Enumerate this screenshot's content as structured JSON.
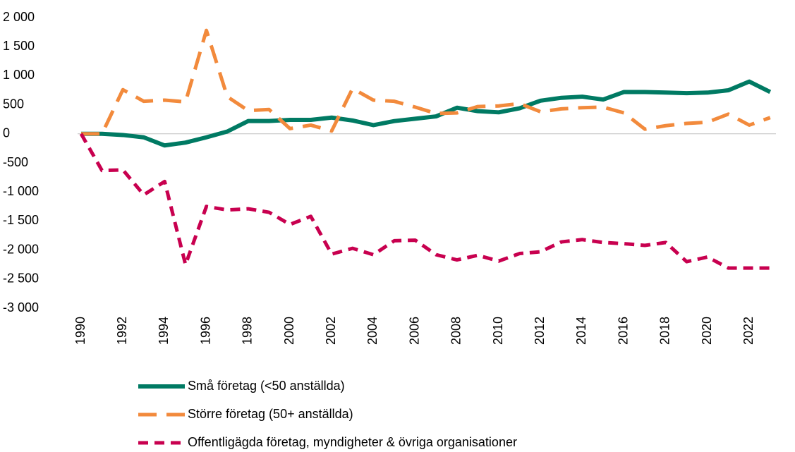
{
  "chart_data": {
    "type": "line",
    "categories": [
      "1990",
      null,
      "1992",
      null,
      "1994",
      null,
      "1996",
      null,
      "1998",
      null,
      "2000",
      null,
      "2002",
      null,
      "2004",
      null,
      "2006",
      null,
      "2008",
      null,
      "2010",
      null,
      "2012",
      null,
      "2014",
      null,
      "2016",
      null,
      "2018",
      null,
      "2020",
      null,
      "2022",
      null
    ],
    "series": [
      {
        "name": "Små företag (<50 anställda)",
        "color": "#007a63",
        "dash": "solid",
        "values": [
          0,
          0,
          -20,
          -60,
          -200,
          -150,
          -60,
          40,
          220,
          220,
          240,
          240,
          280,
          230,
          150,
          220,
          260,
          300,
          450,
          390,
          370,
          440,
          570,
          620,
          640,
          590,
          720,
          720,
          710,
          700,
          710,
          750,
          900,
          720
        ]
      },
      {
        "name": "Större företag (50+ anställda)",
        "color": "#f28a3c",
        "dash": "long",
        "values": [
          0,
          0,
          760,
          560,
          580,
          550,
          1780,
          640,
          400,
          420,
          90,
          150,
          50,
          780,
          580,
          560,
          460,
          350,
          360,
          470,
          480,
          520,
          380,
          430,
          450,
          460,
          360,
          80,
          140,
          180,
          200,
          340,
          150,
          280
        ]
      },
      {
        "name": "Offentligägda företag, myndigheter & övriga organisationer",
        "color": "#c8004f",
        "dash": "short",
        "values": [
          0,
          -630,
          -620,
          -1050,
          -820,
          -2250,
          -1250,
          -1310,
          -1290,
          -1350,
          -1560,
          -1420,
          -2070,
          -1970,
          -2080,
          -1840,
          -1830,
          -2080,
          -2170,
          -2090,
          -2190,
          -2060,
          -2030,
          -1860,
          -1820,
          -1870,
          -1890,
          -1920,
          -1870,
          -2200,
          -2120,
          -2310,
          -2310,
          -2310
        ]
      }
    ],
    "ylim": [
      -3000,
      2000
    ],
    "yticks": [
      {
        "value": -3000,
        "label": "-3 000"
      },
      {
        "value": -2500,
        "label": "-2 500"
      },
      {
        "value": -2000,
        "label": "-2 000"
      },
      {
        "value": -1500,
        "label": "-1 500"
      },
      {
        "value": -1000,
        "label": "-1 000"
      },
      -500,
      0,
      500,
      {
        "value": 1000,
        "label": "1 000"
      },
      {
        "value": 1500,
        "label": "1 500"
      },
      {
        "value": 2000,
        "label": "2 000"
      }
    ],
    "legend": "bottom"
  }
}
